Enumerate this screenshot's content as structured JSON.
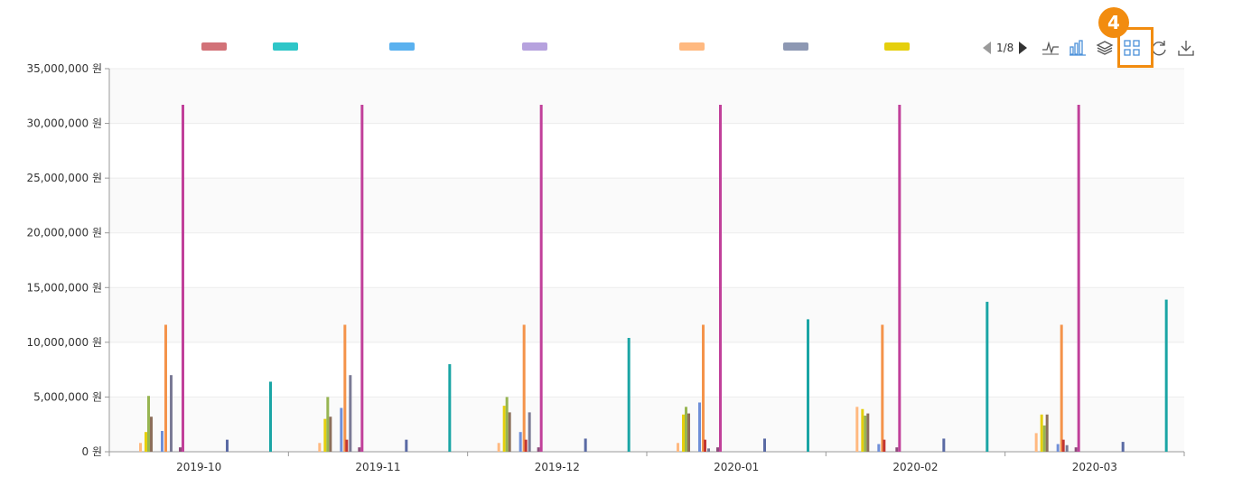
{
  "colors": {
    "legend": [
      "#d27278",
      "#2ec6c8",
      "#5ab1ef",
      "#b6a2de",
      "#ffb980",
      "#8d98b3",
      "#e5cf0d"
    ],
    "series": [
      "#ffb980",
      "#e5cf0d",
      "#97b552",
      "#8c6f5a",
      "#6f8fd8",
      "#f4934a",
      "#c23531",
      "#7a7a95",
      "#8d4b7a",
      "#c1409a",
      "#5a6aa4",
      "#1aa5a5"
    ],
    "accent": "#f28c0f"
  },
  "toolbar": {
    "page_indicator": "1/8",
    "tools": [
      {
        "name": "line-chart-icon"
      },
      {
        "name": "bar-chart-icon"
      },
      {
        "name": "stack-icon"
      },
      {
        "name": "grid-view-icon"
      },
      {
        "name": "refresh-icon"
      },
      {
        "name": "download-icon"
      }
    ]
  },
  "annotation": {
    "badge": "4"
  },
  "chart_data": {
    "type": "bar",
    "ylim": [
      0,
      35000000
    ],
    "yticks": [
      "0 원",
      "5,000,000 원",
      "10,000,000 원",
      "15,000,000 원",
      "20,000,000 원",
      "25,000,000 원",
      "30,000,000 원",
      "35,000,000 원"
    ],
    "categories": [
      "2019-10",
      "2019-11",
      "2019-12",
      "2020-01",
      "2020-02",
      "2020-03"
    ],
    "series": [
      {
        "values": [
          800000,
          800000,
          800000,
          800000,
          4100000,
          1700000
        ]
      },
      {
        "values": [
          1800000,
          3000000,
          4200000,
          3400000,
          3900000,
          3400000
        ]
      },
      {
        "values": [
          5100000,
          5000000,
          5000000,
          4100000,
          3300000,
          2400000
        ]
      },
      {
        "values": [
          3200000,
          3200000,
          3600000,
          3500000,
          3500000,
          3400000
        ]
      },
      {
        "values": [
          1900000,
          4000000,
          1800000,
          4500000,
          700000,
          700000
        ]
      },
      {
        "values": [
          11600000,
          11600000,
          11600000,
          11600000,
          11600000,
          11600000
        ]
      },
      {
        "values": [
          0,
          1100000,
          1100000,
          1100000,
          1100000,
          1100000
        ]
      },
      {
        "values": [
          7000000,
          7000000,
          3600000,
          300000,
          0,
          600000
        ]
      },
      {
        "values": [
          400000,
          400000,
          400000,
          400000,
          400000,
          400000
        ]
      },
      {
        "values": [
          31700000,
          31700000,
          31700000,
          31700000,
          31700000,
          31700000
        ]
      },
      {
        "values": [
          1100000,
          1100000,
          1200000,
          1200000,
          1200000,
          900000
        ]
      },
      {
        "values": [
          6400000,
          8000000,
          10400000,
          12100000,
          13700000,
          13900000
        ]
      }
    ]
  }
}
